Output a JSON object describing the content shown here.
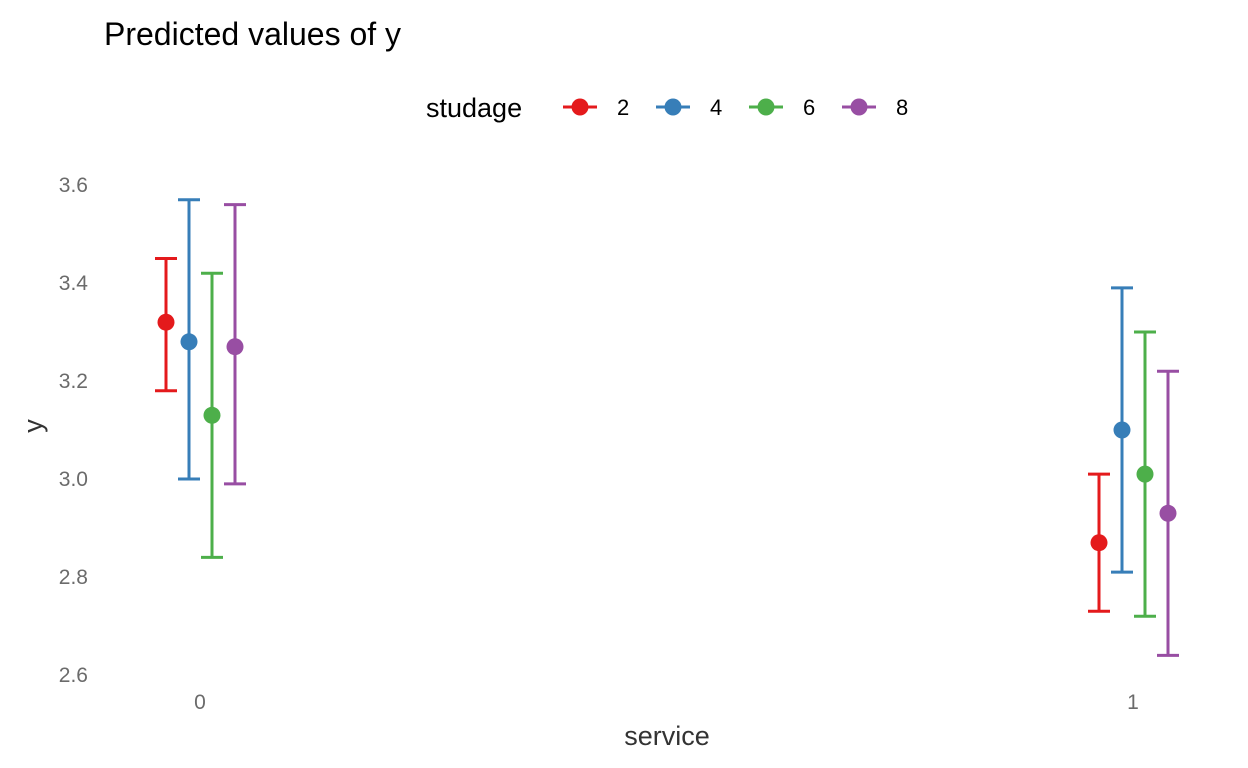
{
  "chart_data": {
    "type": "scatter",
    "title": "Predicted values of y",
    "xlabel": "service",
    "ylabel": "y",
    "categories": [
      "0",
      "1"
    ],
    "ylim": [
      2.6,
      3.6
    ],
    "yticks": [
      "2.6",
      "2.8",
      "3.0",
      "3.2",
      "3.4",
      "3.6"
    ],
    "grid": false,
    "legend": {
      "title": "studage",
      "position": "top"
    },
    "series": [
      {
        "name": "2",
        "color": "#E41A1C",
        "points": [
          {
            "x": "0",
            "y": 3.32,
            "lower": 3.18,
            "upper": 3.45
          },
          {
            "x": "1",
            "y": 2.87,
            "lower": 2.73,
            "upper": 3.01
          }
        ]
      },
      {
        "name": "4",
        "color": "#377EB8",
        "points": [
          {
            "x": "0",
            "y": 3.28,
            "lower": 3.0,
            "upper": 3.57
          },
          {
            "x": "1",
            "y": 3.1,
            "lower": 2.81,
            "upper": 3.39
          }
        ]
      },
      {
        "name": "6",
        "color": "#4DAF4A",
        "points": [
          {
            "x": "0",
            "y": 3.13,
            "lower": 2.84,
            "upper": 3.42
          },
          {
            "x": "1",
            "y": 3.01,
            "lower": 2.72,
            "upper": 3.3
          }
        ]
      },
      {
        "name": "8",
        "color": "#984EA3",
        "points": [
          {
            "x": "0",
            "y": 3.27,
            "lower": 2.99,
            "upper": 3.56
          },
          {
            "x": "1",
            "y": 2.93,
            "lower": 2.64,
            "upper": 3.22
          }
        ]
      }
    ]
  }
}
